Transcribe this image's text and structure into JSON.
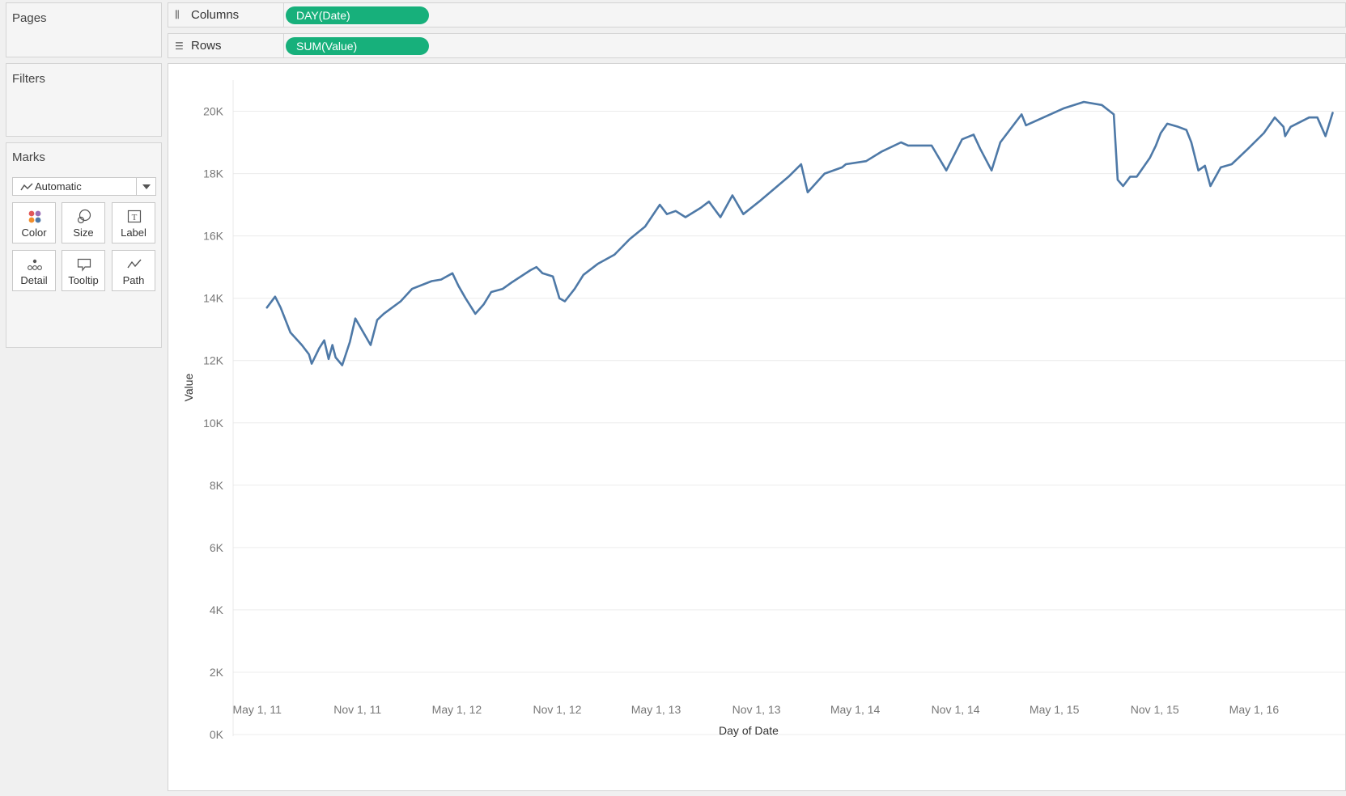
{
  "left_pane": {
    "pages_title": "Pages",
    "filters_title": "Filters",
    "marks_title": "Marks",
    "mark_type": "Automatic",
    "mark_buttons": [
      "Color",
      "Size",
      "Label",
      "Detail",
      "Tooltip",
      "Path"
    ]
  },
  "shelves": {
    "columns_label": "Columns",
    "columns_pill": "DAY(Date)",
    "rows_label": "Rows",
    "rows_pill": "SUM(Value)"
  },
  "colors": {
    "pill": "#17b07b",
    "line": "#4e79a7",
    "gridline": "#ececec"
  },
  "chart_data": {
    "type": "line",
    "xlabel": "Day of Date",
    "ylabel": "Value",
    "ylim": [
      0,
      21000
    ],
    "y_tick_values": [
      0,
      2000,
      4000,
      6000,
      8000,
      10000,
      12000,
      14000,
      16000,
      18000,
      20000
    ],
    "y_tick_labels": [
      "0K",
      "2K",
      "4K",
      "6K",
      "8K",
      "10K",
      "12K",
      "14K",
      "16K",
      "18K",
      "20K"
    ],
    "xlim": [
      "2011-03-18",
      "2016-10-15"
    ],
    "x_tick_dates": [
      "2011-05-01",
      "2011-11-01",
      "2012-05-01",
      "2012-11-01",
      "2013-05-01",
      "2013-11-01",
      "2014-05-01",
      "2014-11-01",
      "2015-05-01",
      "2015-11-01",
      "2016-05-01"
    ],
    "x_tick_labels": [
      "May 1, 11",
      "Nov 1, 11",
      "May 1, 12",
      "Nov 1, 12",
      "May 1, 13",
      "Nov 1, 13",
      "May 1, 14",
      "Nov 1, 14",
      "May 1, 15",
      "Nov 1, 15",
      "May 1, 16"
    ],
    "grid": true,
    "series": [
      {
        "x": [
          "2011-05-19",
          "2011-06-03",
          "2011-06-13",
          "2011-07-01",
          "2011-07-22",
          "2011-08-04",
          "2011-08-09",
          "2011-08-23",
          "2011-09-01",
          "2011-09-09",
          "2011-09-16",
          "2011-09-22",
          "2011-10-04",
          "2011-10-18",
          "2011-10-28",
          "2011-11-25",
          "2011-12-07",
          "2011-12-19",
          "2012-01-19",
          "2012-02-09",
          "2012-03-16",
          "2012-04-02",
          "2012-04-23",
          "2012-05-04",
          "2012-05-17",
          "2012-06-04",
          "2012-06-19",
          "2012-07-03",
          "2012-07-24",
          "2012-08-09",
          "2012-09-13",
          "2012-09-24",
          "2012-10-05",
          "2012-10-24",
          "2012-11-05",
          "2012-11-15",
          "2012-12-03",
          "2012-12-19",
          "2013-01-14",
          "2013-02-14",
          "2013-03-14",
          "2013-04-11",
          "2013-05-08",
          "2013-05-21",
          "2013-06-06",
          "2013-06-24",
          "2013-07-22",
          "2013-08-06",
          "2013-08-27",
          "2013-09-18",
          "2013-10-08",
          "2013-11-06",
          "2013-12-30",
          "2014-01-22",
          "2014-02-03",
          "2014-03-06",
          "2014-04-07",
          "2014-04-14",
          "2014-05-21",
          "2014-06-18",
          "2014-07-24",
          "2014-08-06",
          "2014-09-18",
          "2014-10-15",
          "2014-11-13",
          "2014-12-04",
          "2014-12-16",
          "2015-01-06",
          "2015-01-22",
          "2015-03-02",
          "2015-03-10",
          "2015-05-19",
          "2015-06-24",
          "2015-07-27",
          "2015-08-18",
          "2015-08-25",
          "2015-09-04",
          "2015-09-17",
          "2015-09-29",
          "2015-10-23",
          "2015-11-03",
          "2015-11-12",
          "2015-11-24",
          "2015-12-14",
          "2015-12-29",
          "2016-01-07",
          "2016-01-20",
          "2016-02-01",
          "2016-02-11",
          "2016-03-01",
          "2016-03-21",
          "2016-04-20",
          "2016-05-19",
          "2016-06-08",
          "2016-06-24",
          "2016-06-27",
          "2016-07-07",
          "2016-08-10",
          "2016-08-25",
          "2016-09-09",
          "2016-09-22"
        ],
        "values": [
          13700,
          14050,
          13700,
          12900,
          12500,
          12200,
          11900,
          12400,
          12650,
          12050,
          12500,
          12100,
          11850,
          12600,
          13350,
          12500,
          13300,
          13500,
          13900,
          14300,
          14550,
          14600,
          14800,
          14400,
          14000,
          13500,
          13800,
          14200,
          14300,
          14500,
          14900,
          15000,
          14800,
          14700,
          14000,
          13900,
          14300,
          14750,
          15100,
          15400,
          15900,
          16300,
          17000,
          16700,
          16800,
          16600,
          16900,
          17100,
          16600,
          17300,
          16700,
          17100,
          17900,
          18300,
          17400,
          18000,
          18200,
          18300,
          18400,
          18700,
          19000,
          18900,
          18900,
          18100,
          19100,
          19250,
          18800,
          18100,
          19000,
          19900,
          19550,
          20100,
          20300,
          20200,
          19900,
          17800,
          17600,
          17900,
          17900,
          18500,
          18900,
          19300,
          19600,
          19500,
          19400,
          19000,
          18100,
          18250,
          17600,
          18200,
          18300,
          18800,
          19300,
          19800,
          19500,
          19200,
          19500,
          19800,
          19800,
          19200,
          19950
        ]
      }
    ]
  }
}
